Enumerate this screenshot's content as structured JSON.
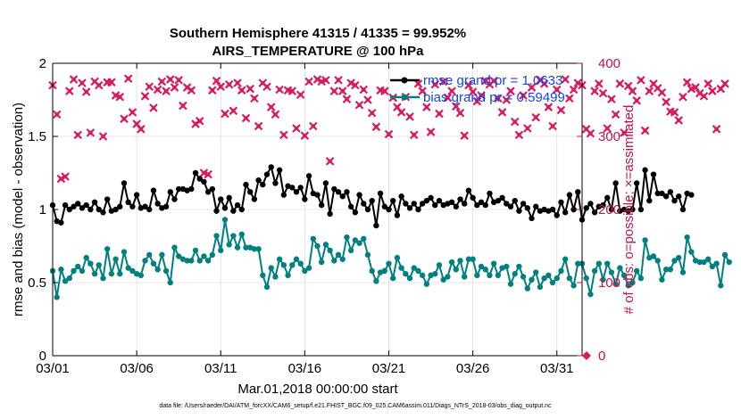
{
  "chart_data": {
    "type": "line",
    "title": "Southern Hemisphere 41315 / 41335 = 99.952%",
    "subtitle": "AIRS_TEMPERATURE @ 100 hPa",
    "xlabel": "Mar.01,2018 00:00:00 start",
    "ylabel": "rmse and bias (model - observation)",
    "y2label": "# of obs: o=possible; ×=assimilated",
    "x_tick_labels": [
      "03/01",
      "03/06",
      "03/11",
      "03/16",
      "03/21",
      "03/26",
      "03/31"
    ],
    "x_tick_days": [
      0,
      5,
      10,
      15,
      20,
      25,
      30
    ],
    "xlim_days": [
      0,
      31.5
    ],
    "y_ticks": [
      "0",
      "0.5",
      "1",
      "1.5",
      "2"
    ],
    "ylim": [
      0,
      2
    ],
    "y2_ticks": [
      "0",
      "100",
      "200",
      "300",
      "400"
    ],
    "y2lim": [
      0,
      400
    ],
    "grid": true,
    "legend_position": "top-right",
    "colors": {
      "rmse": "#000000",
      "bias": "#008080",
      "obs": "#d81b5e",
      "legend_text": "#1046f0"
    },
    "x_day_step": 0.25,
    "series": [
      {
        "name": "rmse grand pr = 1.0633",
        "axis": "left",
        "marker": "circle",
        "values": [
          1.03,
          0.92,
          0.91,
          1.03,
          1.0,
          1.02,
          1.04,
          1.01,
          1.03,
          1.0,
          1.05,
          1.0,
          0.98,
          1.07,
          0.99,
          1.0,
          1.02,
          1.18,
          1.05,
          1.02,
          1.1,
          1.01,
          1.02,
          1.0,
          1.13,
          1.04,
          1.01,
          1.02,
          1.12,
          1.07,
          1.14,
          1.14,
          1.13,
          1.14,
          1.25,
          1.21,
          1.19,
          1.12,
          1.14,
          0.99,
          1.07,
          1.01,
          1.08,
          0.99,
          1.03,
          1.0,
          1.17,
          1.12,
          1.07,
          1.2,
          1.17,
          1.24,
          1.29,
          1.18,
          1.27,
          1.1,
          1.16,
          1.15,
          1.12,
          1.15,
          1.07,
          1.23,
          1.11,
          1.1,
          1.03,
          1.18,
          0.97,
          1.14,
          1.12,
          1.09,
          1.12,
          1.02,
          0.98,
          1.1,
          1.04,
          1.0,
          1.06,
          0.89,
          1.11,
          1.02,
          1.0,
          1.06,
          0.96,
          1.09,
          1.04,
          1.01,
          1.04,
          1.0,
          1.04,
          1.06,
          1.08,
          1.03,
          1.06,
          1.03,
          1.04,
          1.05,
          1.02,
          1.07,
          1.04,
          1.13,
          1.08,
          1.03,
          1.05,
          1.03,
          1.11,
          1.05,
          1.06,
          1.08,
          1.04,
          1.02,
          1.06,
          0.99,
          1.04,
          1.01,
          0.94,
          1.02,
          0.99,
          1.0,
          0.99,
          1.0,
          0.96,
          1.05,
          0.98,
          1.1,
          1.0,
          1.12,
          0.93,
          1.01,
          1.04,
          0.98,
          1.02,
          1.03,
          1.08,
          1.0,
          1.18,
          0.99,
          1.0,
          0.99,
          1.0,
          1.18,
          1.0,
          1.27,
          1.06,
          1.24,
          1.11,
          1.11,
          1.09,
          1.12,
          1.06,
          1.09,
          1.0,
          1.11,
          1.1
        ]
      },
      {
        "name": "bias grand pr = 0.59499",
        "axis": "left",
        "marker": "circle",
        "values": [
          0.58,
          0.4,
          0.59,
          0.51,
          0.53,
          0.58,
          0.61,
          0.58,
          0.67,
          0.63,
          0.56,
          0.62,
          0.53,
          0.73,
          0.56,
          0.66,
          0.56,
          0.71,
          0.6,
          0.58,
          0.56,
          0.55,
          0.65,
          0.69,
          0.63,
          0.59,
          0.69,
          0.58,
          0.5,
          0.74,
          0.68,
          0.66,
          0.65,
          0.65,
          0.72,
          0.65,
          0.68,
          0.65,
          0.69,
          0.82,
          0.72,
          0.93,
          0.76,
          0.82,
          0.74,
          0.83,
          0.74,
          0.74,
          0.73,
          0.73,
          0.55,
          0.47,
          0.6,
          0.54,
          0.66,
          0.62,
          0.55,
          0.62,
          0.66,
          0.63,
          0.58,
          0.6,
          0.8,
          0.75,
          0.64,
          0.76,
          0.72,
          0.65,
          0.69,
          0.66,
          0.81,
          0.72,
          0.79,
          0.77,
          0.8,
          0.69,
          0.58,
          0.51,
          0.57,
          0.58,
          0.63,
          0.53,
          0.67,
          0.6,
          0.56,
          0.53,
          0.6,
          0.58,
          0.55,
          0.49,
          0.55,
          0.56,
          0.62,
          0.52,
          0.54,
          0.64,
          0.59,
          0.65,
          0.54,
          0.66,
          0.66,
          0.55,
          0.61,
          0.59,
          0.55,
          0.63,
          0.55,
          0.6,
          0.61,
          0.49,
          0.56,
          0.61,
          0.54,
          0.46,
          0.52,
          0.57,
          0.47,
          0.53,
          0.55,
          0.5,
          0.53,
          0.58,
          0.66,
          0.53,
          0.48,
          0.63,
          0.63,
          0.53,
          0.42,
          0.58,
          0.63,
          0.52,
          0.63,
          0.57,
          0.49,
          0.6,
          0.55,
          0.48,
          0.5,
          0.58,
          0.53,
          0.79,
          0.67,
          0.68,
          0.65,
          0.52,
          0.59,
          0.59,
          0.65,
          0.67,
          0.57,
          0.81,
          0.71,
          0.65,
          0.64,
          0.64,
          0.66,
          0.61,
          0.63,
          0.48,
          0.69,
          0.64
        ]
      },
      {
        "name": "obs possible/assimilated",
        "axis": "right",
        "marker": "x",
        "values": [
          370,
          330,
          242,
          245,
          362,
          378,
          302,
          373,
          361,
          305,
          375,
          370,
          300,
          374,
          374,
          356,
          354,
          324,
          379,
          333,
          317,
          310,
          355,
          368,
          339,
          364,
          375,
          362,
          378,
          367,
          377,
          342,
          367,
          363,
          317,
          321,
          250,
          248,
          363,
          376,
          368,
          331,
          371,
          335,
          373,
          363,
          325,
          365,
          352,
          314,
          373,
          368,
          340,
          330,
          364,
          302,
          363,
          362,
          311,
          357,
          301,
          375,
          314,
          378,
          375,
          377,
          266,
          362,
          377,
          362,
          351,
          373,
          370,
          343,
          364,
          350,
          332,
          313,
          363,
          362,
          303,
          353,
          340,
          333,
          354,
          327,
          302,
          372,
          362,
          340,
          306,
          371,
          331,
          375,
          353,
          362,
          341,
          332,
          301,
          370,
          361,
          348,
          356,
          376,
          371,
          376,
          352,
          333,
          350,
          362,
          320,
          302,
          356,
          311,
          367,
          326,
          377,
          372,
          340,
          314,
          364,
          336,
          378,
          352,
          364,
          373,
          370,
          310,
          304,
          362,
          372,
          359,
          311,
          351,
          330,
          372,
          305,
          369,
          362,
          349,
          377,
          308,
          362,
          372,
          366,
          360,
          347,
          334,
          333,
          322,
          354,
          374,
          365,
          367,
          359,
          355,
          372,
          362,
          310,
          365,
          372
        ]
      }
    ],
    "footnote": "data file: /Users/raeder/DAI/ATM_forcXX/CAM6_setup/f.e21.FHIST_BGC.f09_025.CAM6assim.011/Diags_NTrS_2018-03/obs_diag_output.nc",
    "extra_right_marker": {
      "label": "0",
      "marker": "diamond"
    }
  }
}
